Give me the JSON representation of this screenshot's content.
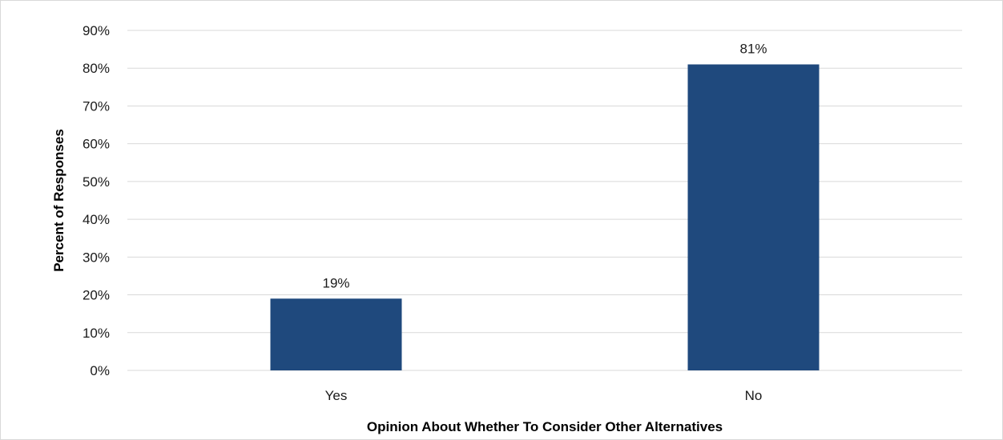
{
  "chart_data": {
    "type": "bar",
    "categories": [
      "Yes",
      "No"
    ],
    "values": [
      19,
      81
    ],
    "data_labels": [
      "19%",
      "81%"
    ],
    "xlabel": "Opinion About Whether To Consider Other Alternatives",
    "ylabel": "Percent of Responses",
    "ylim": [
      0,
      90
    ],
    "yticks": [
      0,
      10,
      20,
      30,
      40,
      50,
      60,
      70,
      80,
      90
    ],
    "ytick_labels": [
      "0%",
      "10%",
      "20%",
      "30%",
      "40%",
      "50%",
      "60%",
      "70%",
      "80%",
      "90%"
    ],
    "grid": true,
    "legend": "none",
    "bar_color": "#1f497d"
  }
}
